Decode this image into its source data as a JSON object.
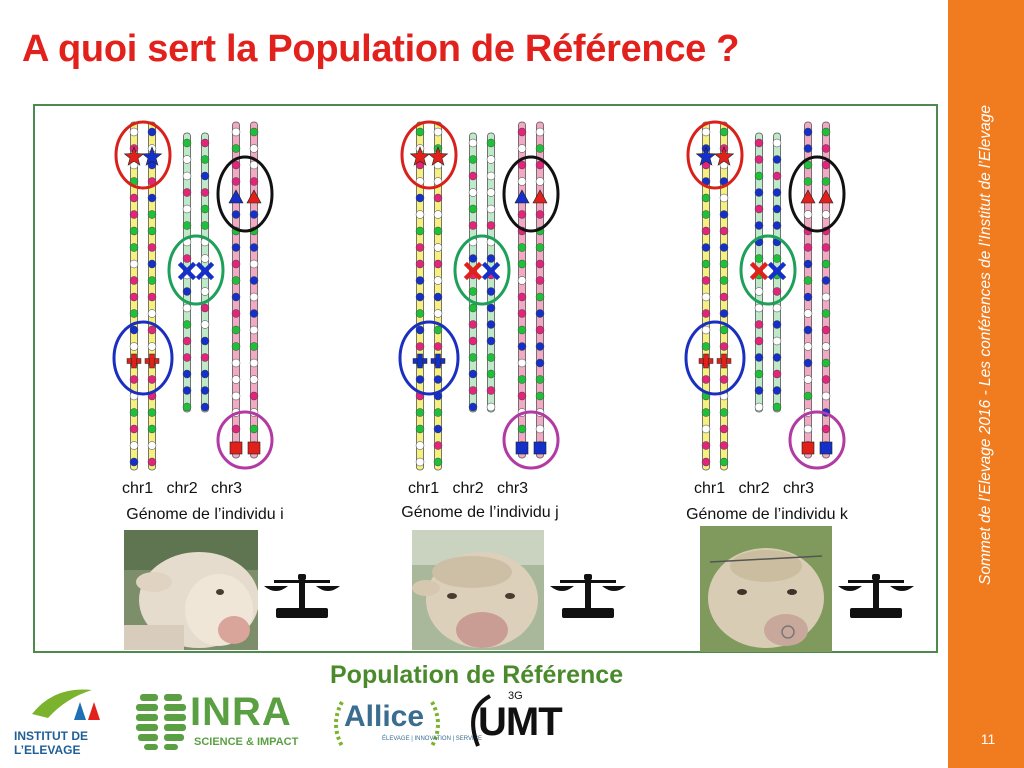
{
  "title": "A quoi sert la Population de Référence ?",
  "sidebar_text": "Sommet de l’Elevage 2016 - Les conférences de l’Institut de l’Elevage",
  "page_number": "11",
  "chr_labels": [
    "chr1",
    "chr2",
    "chr3"
  ],
  "individuals": [
    {
      "genome_label": "Génome de l’individu i"
    },
    {
      "genome_label": "Génome de l’individu j"
    },
    {
      "genome_label": "Génome de l’individu k"
    }
  ],
  "population_label": "Population de Référence",
  "logos": {
    "institut_line1": "INSTITUT DE",
    "institut_line2": "L’ELEVAGE",
    "inra_name": "INRA",
    "inra_tagline": "SCIENCE & IMPACT",
    "allice_name": "Allice",
    "allice_tagline": "ÉLEVAGE | INNOVATION | SERVICE",
    "umt_prefix": "3G",
    "umt_name": "UMT"
  },
  "colors": {
    "title": "#e2211c",
    "side_band": "#f07c1f",
    "frame": "#4d8a4d",
    "population_label": "#4a8a2a",
    "chr1": "#f5f080",
    "chr2": "#bfe9c9",
    "chr3": "#f1a9c4",
    "marker_red": "#e0201a",
    "marker_blue": "#1530c8",
    "circle_red": "#d8211b",
    "circle_green": "#1fa05a",
    "circle_black": "#111111",
    "circle_blue": "#1a2fc0",
    "circle_magenta": "#b23aa3"
  }
}
